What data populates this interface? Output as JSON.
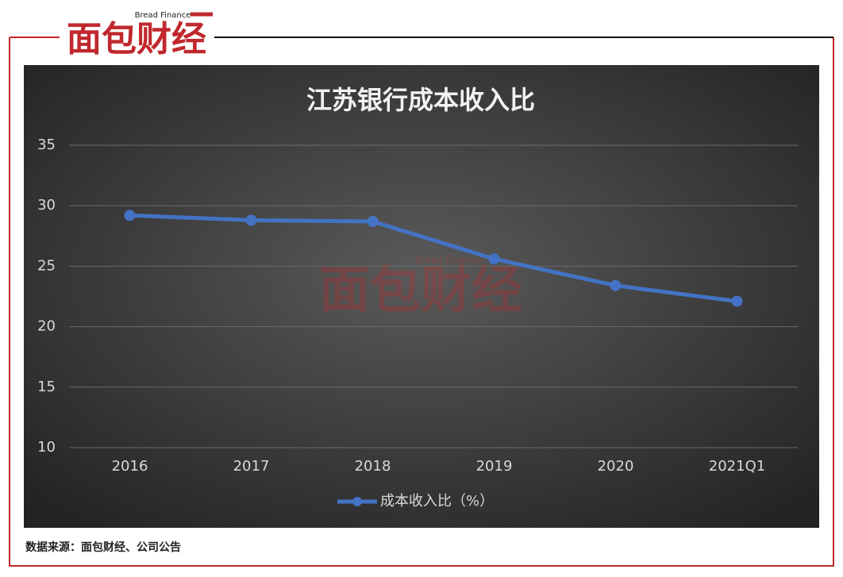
{
  "logo": {
    "name": "面包财经",
    "en": "Bread Finance"
  },
  "watermark": {
    "name": "面包财经",
    "en": "Bread Finance"
  },
  "chart_data": {
    "type": "line",
    "title": "江苏银行成本收入比",
    "categories": [
      "2016",
      "2017",
      "2018",
      "2019",
      "2020",
      "2021Q1"
    ],
    "series": [
      {
        "name": "成本收入比（%）",
        "color": "#4472c4",
        "values": [
          29.2,
          28.8,
          28.7,
          25.6,
          23.4,
          22.1
        ]
      }
    ],
    "ylim": [
      10,
      35
    ],
    "yticks": [
      10,
      15,
      20,
      25,
      30,
      35
    ],
    "grid": true,
    "legend": "bottom"
  },
  "source": "数据来源：面包财经、公司公告"
}
